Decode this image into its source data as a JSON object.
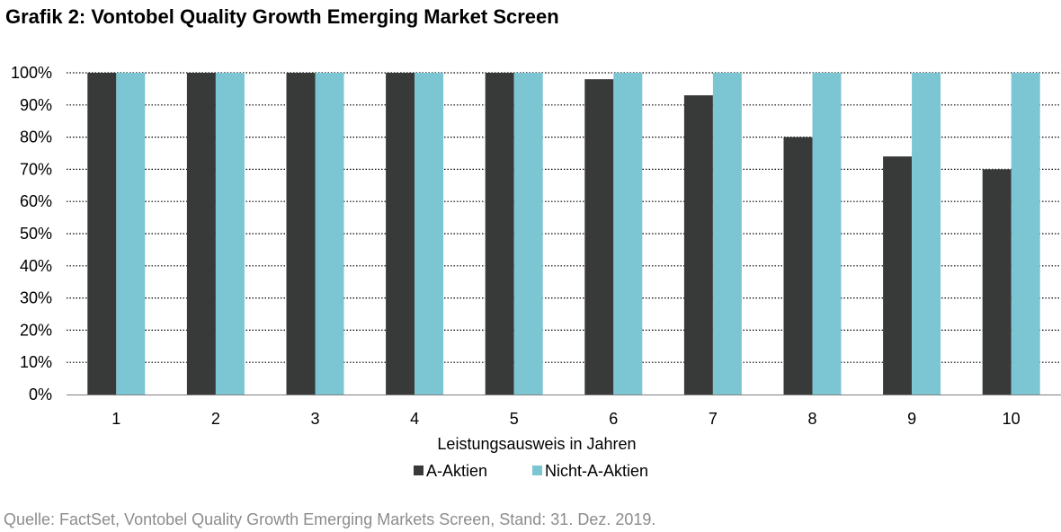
{
  "title": "Grafik 2: Vontobel Quality Growth Emerging Market Screen",
  "source": "Quelle: FactSet, Vontobel Quality Growth Emerging Markets Screen, Stand: 31. Dez. 2019.",
  "chart_data": {
    "type": "bar",
    "title": "Grafik 2: Vontobel Quality Growth Emerging Market Screen",
    "xlabel": "Leistungsausweis in Jahren",
    "ylabel": "",
    "categories": [
      "1",
      "2",
      "3",
      "4",
      "5",
      "6",
      "7",
      "8",
      "9",
      "10"
    ],
    "series": [
      {
        "name": "A-Aktien",
        "color": "#373a38",
        "values": [
          100,
          100,
          100,
          100,
          100,
          98,
          93,
          80,
          74,
          70
        ]
      },
      {
        "name": "Nicht-A-Aktien",
        "color": "#7cc5d3",
        "values": [
          100,
          100,
          100,
          100,
          100,
          100,
          100,
          100,
          100,
          100
        ]
      }
    ],
    "ylim": [
      0,
      100
    ],
    "yticks": [
      0,
      10,
      20,
      30,
      40,
      50,
      60,
      70,
      80,
      90,
      100
    ],
    "ytick_labels": [
      "0%",
      "10%",
      "20%",
      "30%",
      "40%",
      "50%",
      "60%",
      "70%",
      "80%",
      "90%",
      "100%"
    ],
    "grid": "horizontal dotted",
    "legend": "bottom-center"
  }
}
